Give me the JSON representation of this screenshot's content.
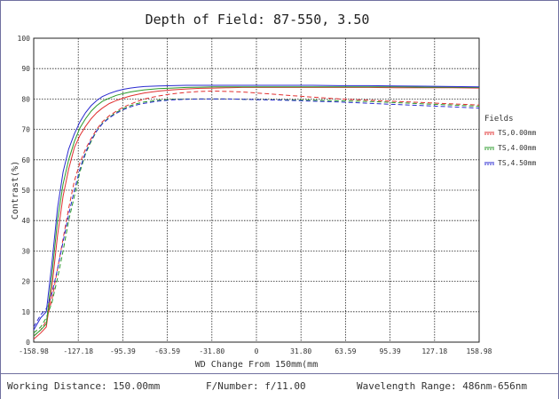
{
  "chart_data": {
    "type": "line",
    "title": "Depth of Field: 87-550, 3.50",
    "xlabel": "WD Change From 150mm(mm",
    "ylabel": "Contrast(%)",
    "xlim": [
      -158.98,
      158.98
    ],
    "ylim": [
      0,
      100
    ],
    "x_ticks": [
      "-158.98",
      "-127.18",
      "-95.39",
      "-63.59",
      "-31.80",
      "0",
      "31.80",
      "63.59",
      "95.39",
      "127.18",
      "158.98"
    ],
    "y_ticks": [
      "0",
      "10",
      "20",
      "30",
      "40",
      "50",
      "60",
      "70",
      "80",
      "90",
      "100"
    ],
    "grid": true,
    "legend_title": "Fields",
    "legend_position": "right",
    "series": [
      {
        "name": "TS,0.00mm",
        "color": "#e03030",
        "style": "solid",
        "x": [
          -158.98,
          -154,
          -150,
          -146,
          -142,
          -138,
          -134,
          -130,
          -126,
          -122,
          -118,
          -114,
          -110,
          -105,
          -100,
          -95,
          -90,
          -85,
          -80,
          -70,
          -60,
          -50,
          -40,
          -30,
          -20,
          -10,
          0,
          20,
          40,
          60,
          80,
          100,
          120,
          140,
          158.98
        ],
        "y": [
          1,
          3,
          5,
          18,
          35,
          48,
          57,
          64,
          68,
          71,
          73.5,
          75.5,
          77,
          78.5,
          79.5,
          80.3,
          81,
          81.5,
          82,
          82.6,
          83,
          83.3,
          83.5,
          83.6,
          83.7,
          83.8,
          83.8,
          83.8,
          83.8,
          83.8,
          83.8,
          83.7,
          83.7,
          83.7,
          83.6
        ]
      },
      {
        "name": "TS,0.00mm",
        "color": "#e03030",
        "style": "dashed",
        "x": [
          -158.98,
          -154,
          -150,
          -146,
          -142,
          -138,
          -134,
          -130,
          -126,
          -122,
          -118,
          -114,
          -110,
          -105,
          -100,
          -95,
          -90,
          -85,
          -80,
          -70,
          -60,
          -50,
          -40,
          -30,
          -20,
          -10,
          0,
          20,
          40,
          60,
          80,
          100,
          120,
          140,
          158.98
        ],
        "y": [
          2,
          4,
          7,
          14,
          24,
          34,
          44,
          53,
          59,
          63.5,
          67,
          70,
          72.5,
          74.5,
          76,
          77.3,
          78.3,
          79.2,
          80,
          81,
          81.7,
          82.2,
          82.5,
          82.6,
          82.5,
          82.3,
          82,
          81.3,
          80.6,
          80,
          79.6,
          79.2,
          78.8,
          78.4,
          78
        ]
      },
      {
        "name": "TS,4.00mm",
        "color": "#2a9a2a",
        "style": "solid",
        "x": [
          -158.98,
          -154,
          -150,
          -146,
          -142,
          -138,
          -134,
          -130,
          -126,
          -122,
          -118,
          -114,
          -110,
          -105,
          -100,
          -95,
          -90,
          -85,
          -80,
          -70,
          -60,
          -50,
          -40,
          -30,
          -20,
          -10,
          0,
          20,
          40,
          60,
          80,
          100,
          120,
          140,
          158.98
        ],
        "y": [
          2,
          4,
          6,
          22,
          40,
          52,
          60,
          66,
          70.5,
          73.5,
          76,
          77.8,
          79.2,
          80.3,
          81.2,
          81.8,
          82.3,
          82.7,
          83,
          83.4,
          83.6,
          83.8,
          83.9,
          84,
          84,
          84,
          84,
          84,
          84,
          84,
          84,
          84,
          83.9,
          83.9,
          83.8
        ]
      },
      {
        "name": "TS,4.00mm",
        "color": "#2a9a2a",
        "style": "dashed",
        "x": [
          -158.98,
          -154,
          -150,
          -146,
          -142,
          -138,
          -134,
          -130,
          -126,
          -122,
          -118,
          -114,
          -110,
          -105,
          -100,
          -95,
          -90,
          -85,
          -80,
          -70,
          -60,
          -50,
          -40,
          -30,
          -20,
          -10,
          0,
          20,
          40,
          60,
          80,
          100,
          120,
          140,
          158.98
        ],
        "y": [
          3,
          5,
          8,
          13,
          21,
          30,
          40,
          48,
          56,
          62,
          66,
          69.5,
          72,
          74,
          75.6,
          76.8,
          77.8,
          78.5,
          79,
          79.6,
          79.9,
          80,
          80,
          80,
          80,
          79.9,
          79.8,
          79.7,
          79.6,
          79.4,
          79.2,
          78.8,
          78.4,
          78,
          77.6
        ]
      },
      {
        "name": "TS,4.50mm",
        "color": "#2a2ad0",
        "style": "solid",
        "x": [
          -158.98,
          -154,
          -150,
          -146,
          -142,
          -138,
          -134,
          -130,
          -126,
          -122,
          -118,
          -114,
          -110,
          -105,
          -100,
          -95,
          -90,
          -85,
          -80,
          -70,
          -60,
          -50,
          -40,
          -30,
          -20,
          -10,
          0,
          20,
          40,
          60,
          80,
          100,
          120,
          140,
          158.98
        ],
        "y": [
          4,
          8,
          10,
          26,
          44,
          56,
          63.5,
          68.5,
          72.5,
          75.5,
          77.8,
          79.5,
          80.8,
          81.8,
          82.6,
          83.2,
          83.6,
          83.9,
          84.1,
          84.3,
          84.4,
          84.5,
          84.5,
          84.5,
          84.5,
          84.5,
          84.5,
          84.5,
          84.5,
          84.4,
          84.4,
          84.3,
          84.2,
          84.1,
          84
        ]
      },
      {
        "name": "TS,4.50mm",
        "color": "#2a2ad0",
        "style": "dashed",
        "x": [
          -158.98,
          -154,
          -150,
          -146,
          -142,
          -138,
          -134,
          -130,
          -126,
          -122,
          -118,
          -114,
          -110,
          -105,
          -100,
          -95,
          -90,
          -85,
          -80,
          -70,
          -60,
          -50,
          -40,
          -30,
          -20,
          -10,
          0,
          20,
          40,
          60,
          80,
          100,
          120,
          140,
          158.98
        ],
        "y": [
          5,
          9,
          11,
          16,
          24,
          33,
          42,
          50,
          57,
          62.5,
          66.5,
          69.5,
          71.8,
          73.8,
          75.3,
          76.5,
          77.4,
          78.1,
          78.6,
          79.3,
          79.7,
          79.9,
          80,
          80,
          80,
          79.9,
          79.8,
          79.6,
          79.3,
          79,
          78.6,
          78.2,
          77.8,
          77.4,
          77
        ]
      }
    ]
  },
  "footer": {
    "working_distance": "Working Distance: 150.00mm",
    "f_number": "F/Number: f/11.00",
    "wavelength": "Wavelength Range: 486nm-656nm"
  }
}
